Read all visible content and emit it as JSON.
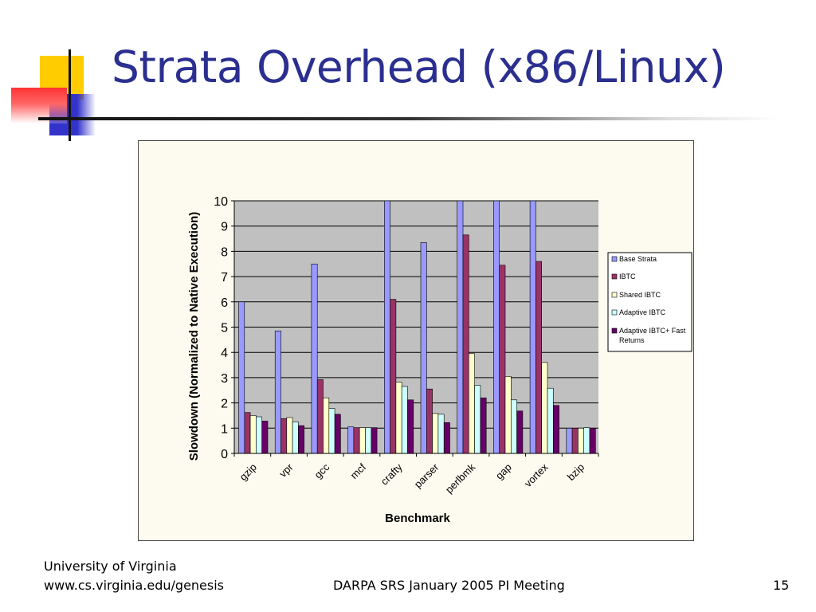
{
  "slide": {
    "title": "Strata Overhead (x86/Linux)",
    "footer_left_line1": "University of Virginia",
    "footer_left_line2": "www.cs.virginia.edu/genesis",
    "footer_center": "DARPA SRS January 2005 PI Meeting",
    "page_number": "15"
  },
  "colors": {
    "title": "#2b2f8f",
    "plot_bg": "#c0c0c0",
    "chart_bg": "#fdfbef"
  },
  "chart_data": {
    "type": "bar",
    "xlabel": "Benchmark",
    "ylabel": "Slowdown (Normalized to Native Execution)",
    "ylim": [
      0,
      10
    ],
    "yticks": [
      "0",
      "1",
      "2",
      "3",
      "4",
      "5",
      "6",
      "7",
      "8",
      "9",
      "10"
    ],
    "grid": true,
    "legend_position": "right",
    "categories": [
      "gzip",
      "vpr",
      "gcc",
      "mcf",
      "crafty",
      "parser",
      "perlbmk",
      "gap",
      "vortex",
      "bzip"
    ],
    "series": [
      {
        "name": "Base Strata",
        "color": "#9999ff",
        "values": [
          6.0,
          4.85,
          7.5,
          1.05,
          10,
          8.35,
          10,
          10,
          10,
          1.0
        ]
      },
      {
        "name": "IBTC",
        "color": "#993366",
        "values": [
          1.62,
          1.38,
          2.92,
          1.02,
          6.1,
          2.55,
          8.65,
          7.45,
          7.6,
          1.0
        ]
      },
      {
        "name": "Shared IBTC",
        "color": "#ffffcc",
        "values": [
          1.5,
          1.42,
          2.2,
          1.02,
          2.82,
          1.58,
          3.95,
          3.05,
          3.6,
          1.0
        ]
      },
      {
        "name": "Adaptive IBTC",
        "color": "#ccffff",
        "values": [
          1.45,
          1.25,
          1.78,
          1.02,
          2.65,
          1.55,
          2.7,
          2.12,
          2.58,
          1.02
        ]
      },
      {
        "name": "Adaptive IBTC+ Fast Returns",
        "color": "#660066",
        "values": [
          1.28,
          1.1,
          1.55,
          1.02,
          2.12,
          1.22,
          2.2,
          1.68,
          1.9,
          1.0
        ]
      }
    ]
  }
}
